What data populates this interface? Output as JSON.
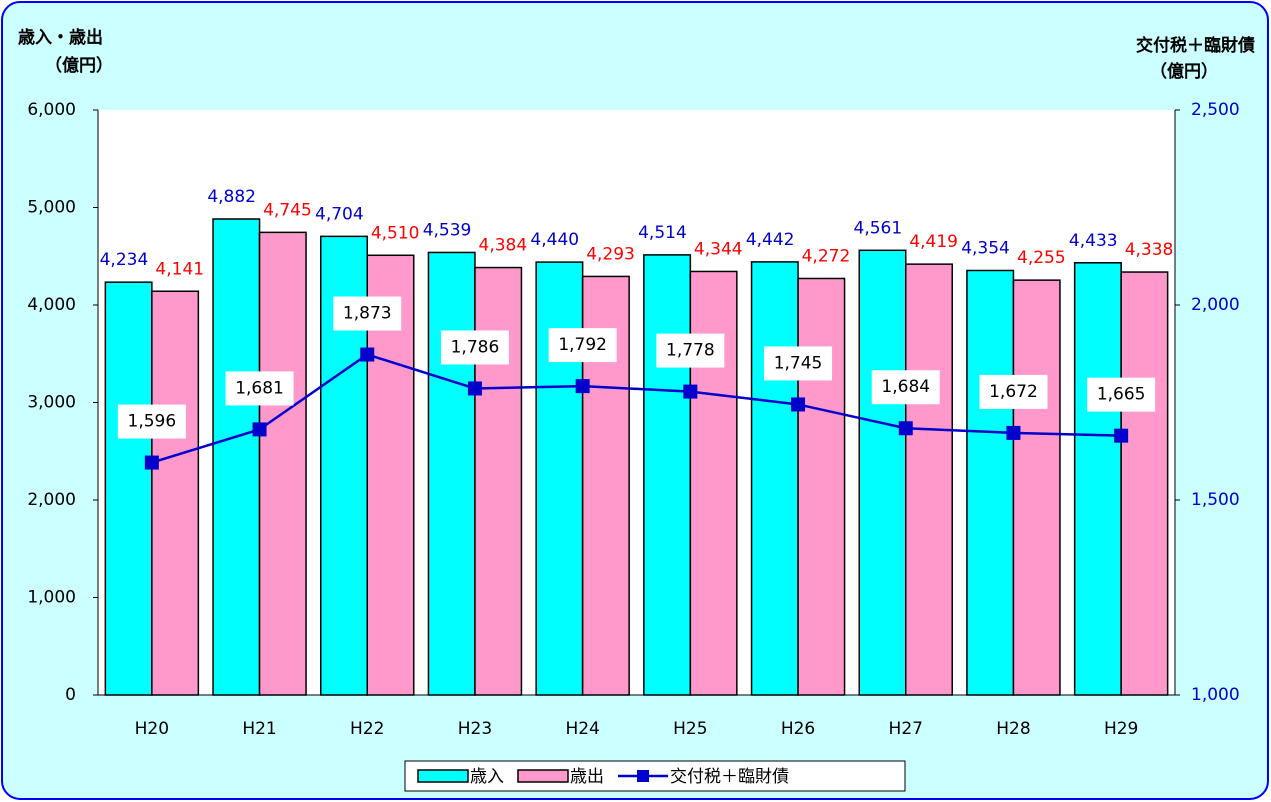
{
  "chart_data": {
    "type": "bar",
    "y_label": [
      "歳入・歳出",
      "（億円）"
    ],
    "y2_label": [
      "交付税＋臨財債",
      "（億円）"
    ],
    "categories": [
      "H20",
      "H21",
      "H22",
      "H23",
      "H24",
      "H25",
      "H26",
      "H27",
      "H28",
      "H29"
    ],
    "series": [
      {
        "name": "歳入",
        "type": "bar",
        "color": "#00ffff",
        "label_color": "#0000cc",
        "values": [
          4234,
          4882,
          4704,
          4539,
          4440,
          4514,
          4442,
          4561,
          4354,
          4433
        ],
        "value_labels": [
          "4,234",
          "4,882",
          "4,704",
          "4,539",
          "4,440",
          "4,514",
          "4,442",
          "4,561",
          "4,354",
          "4,433"
        ]
      },
      {
        "name": "歳出",
        "type": "bar",
        "color": "#ff99cc",
        "label_color": "#ff0000",
        "values": [
          4141,
          4745,
          4510,
          4384,
          4293,
          4344,
          4272,
          4419,
          4255,
          4338
        ],
        "value_labels": [
          "4,141",
          "4,745",
          "4,510",
          "4,384",
          "4,293",
          "4,344",
          "4,272",
          "4,419",
          "4,255",
          "4,338"
        ]
      },
      {
        "name": "交付税＋臨財債",
        "type": "line",
        "axis": "y2",
        "color": "#0000cc",
        "label_color": "#000000",
        "values": [
          1596,
          1681,
          1873,
          1786,
          1792,
          1778,
          1745,
          1684,
          1672,
          1665
        ],
        "value_labels": [
          "1,596",
          "1,681",
          "1,873",
          "1,786",
          "1,792",
          "1,778",
          "1,745",
          "1,684",
          "1,672",
          "1,665"
        ]
      }
    ],
    "ylim": [
      0,
      6000
    ],
    "yticks": [
      0,
      {
        "value": 1000,
        "label": "1,000"
      },
      {
        "value": 2000,
        "label": "2,000"
      },
      {
        "value": 3000,
        "label": "3,000"
      },
      {
        "value": 4000,
        "label": "4,000"
      },
      {
        "value": 5000,
        "label": "5,000"
      },
      {
        "value": 6000,
        "label": "6,000"
      }
    ],
    "y2lim": [
      1000,
      2500
    ],
    "y2ticks": [
      {
        "value": 1000,
        "label": "1,000"
      },
      {
        "value": 1500,
        "label": "1,500"
      },
      {
        "value": 2000,
        "label": "2,000"
      },
      {
        "value": 2500,
        "label": "2,500"
      }
    ],
    "legend": "bottom"
  }
}
